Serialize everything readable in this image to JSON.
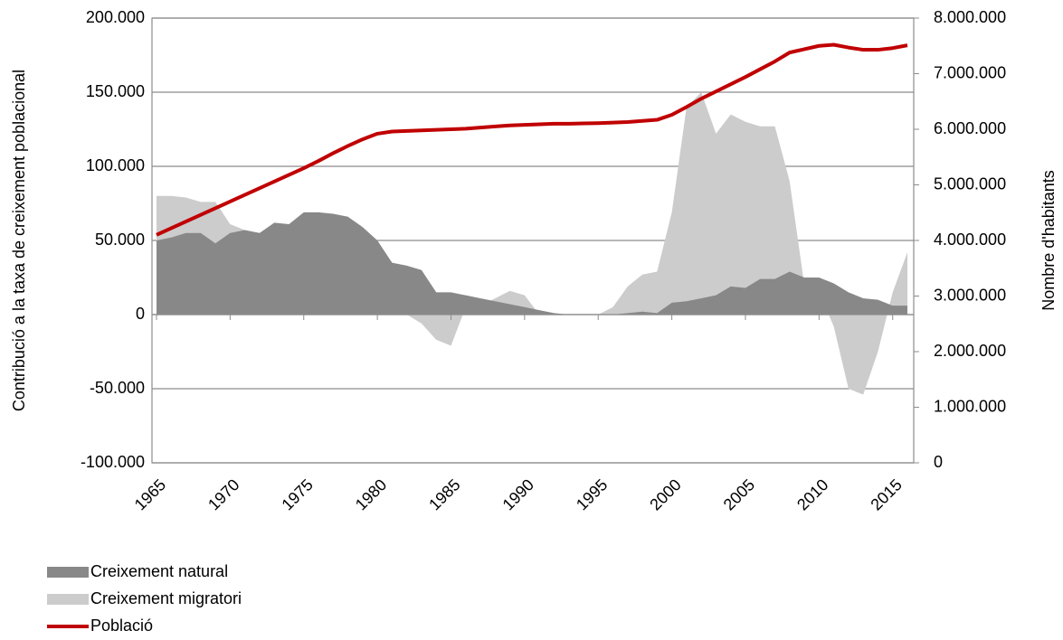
{
  "chart_data": {
    "type": "area",
    "y_label": "Contribució a la taxa de creixement poblacional",
    "y2_label": "Nombre d'habitants",
    "x": [
      1965,
      1966,
      1967,
      1968,
      1969,
      1970,
      1971,
      1972,
      1973,
      1974,
      1975,
      1976,
      1977,
      1978,
      1979,
      1980,
      1981,
      1982,
      1983,
      1984,
      1985,
      1986,
      1987,
      1988,
      1989,
      1990,
      1991,
      1992,
      1993,
      1994,
      1995,
      1996,
      1997,
      1998,
      1999,
      2000,
      2001,
      2002,
      2003,
      2004,
      2005,
      2006,
      2007,
      2008,
      2009,
      2010,
      2011,
      2012,
      2013,
      2014,
      2015,
      2016
    ],
    "xlim": [
      1965,
      2016
    ],
    "xticks": [
      1965,
      1970,
      1975,
      1980,
      1985,
      1990,
      1995,
      2000,
      2005,
      2010,
      2015
    ],
    "ylim": [
      -100000,
      200000
    ],
    "yticks": [
      {
        "value": -100000,
        "label": "-100.000"
      },
      {
        "value": -50000,
        "label": "-50.000"
      },
      0,
      {
        "value": 50000,
        "label": "50.000"
      },
      {
        "value": 100000,
        "label": "100.000"
      },
      {
        "value": 150000,
        "label": "150.000"
      },
      {
        "value": 200000,
        "label": "200.000"
      }
    ],
    "y2lim": [
      0,
      8000000
    ],
    "y2ticks": [
      0,
      {
        "value": 1000000,
        "label": "1.000.000"
      },
      {
        "value": 2000000,
        "label": "2.000.000"
      },
      {
        "value": 3000000,
        "label": "3.000.000"
      },
      {
        "value": 4000000,
        "label": "4.000.000"
      },
      {
        "value": 5000000,
        "label": "5.000.000"
      },
      {
        "value": 6000000,
        "label": "6.000.000"
      },
      {
        "value": 7000000,
        "label": "7.000.000"
      },
      {
        "value": 8000000,
        "label": "8.000.000"
      }
    ],
    "grid": true,
    "legend": "bottom-left",
    "series": [
      {
        "name": "Creixement natural",
        "type": "area",
        "color": "#888888",
        "axis": "y",
        "values": [
          50000,
          52000,
          55000,
          55000,
          48000,
          55000,
          57000,
          55000,
          62000,
          61000,
          69000,
          69000,
          68000,
          66000,
          59000,
          50000,
          35000,
          33000,
          30000,
          15000,
          15000,
          13000,
          11000,
          9000,
          7000,
          5000,
          3000,
          1000,
          0,
          0,
          0,
          0,
          1000,
          2000,
          1000,
          8000,
          9000,
          11000,
          13000,
          19000,
          18000,
          24000,
          24000,
          29000,
          25000,
          25000,
          21000,
          15000,
          11000,
          10000,
          6000,
          6000
        ]
      },
      {
        "name": "Creixement migratori",
        "type": "area",
        "color": "#cccccc",
        "axis": "y",
        "values": [
          80000,
          80000,
          79000,
          76000,
          76000,
          61000,
          57000,
          52000,
          46000,
          39000,
          30000,
          22000,
          15000,
          12000,
          8000,
          5000,
          4000,
          0,
          -6000,
          -17000,
          -21000,
          5000,
          6000,
          11000,
          16000,
          13000,
          0,
          0,
          0,
          0,
          0,
          5000,
          19000,
          27000,
          29000,
          69000,
          140000,
          150000,
          122000,
          135000,
          130000,
          127000,
          127000,
          90000,
          20000,
          15000,
          -8000,
          -50000,
          -54000,
          -25000,
          15000,
          42000
        ]
      },
      {
        "name": "Població",
        "type": "line",
        "color": "#c00000",
        "axis": "y2",
        "values": [
          4100000,
          4220000,
          4340000,
          4460000,
          4580000,
          4700000,
          4820000,
          4940000,
          5060000,
          5180000,
          5300000,
          5430000,
          5570000,
          5700000,
          5820000,
          5920000,
          5960000,
          5970000,
          5980000,
          5990000,
          6000000,
          6010000,
          6030000,
          6050000,
          6070000,
          6080000,
          6090000,
          6100000,
          6100000,
          6105000,
          6110000,
          6120000,
          6130000,
          6150000,
          6170000,
          6260000,
          6400000,
          6550000,
          6680000,
          6810000,
          6940000,
          7080000,
          7220000,
          7380000,
          7440000,
          7500000,
          7520000,
          7470000,
          7430000,
          7430000,
          7460000,
          7510000
        ]
      }
    ]
  }
}
